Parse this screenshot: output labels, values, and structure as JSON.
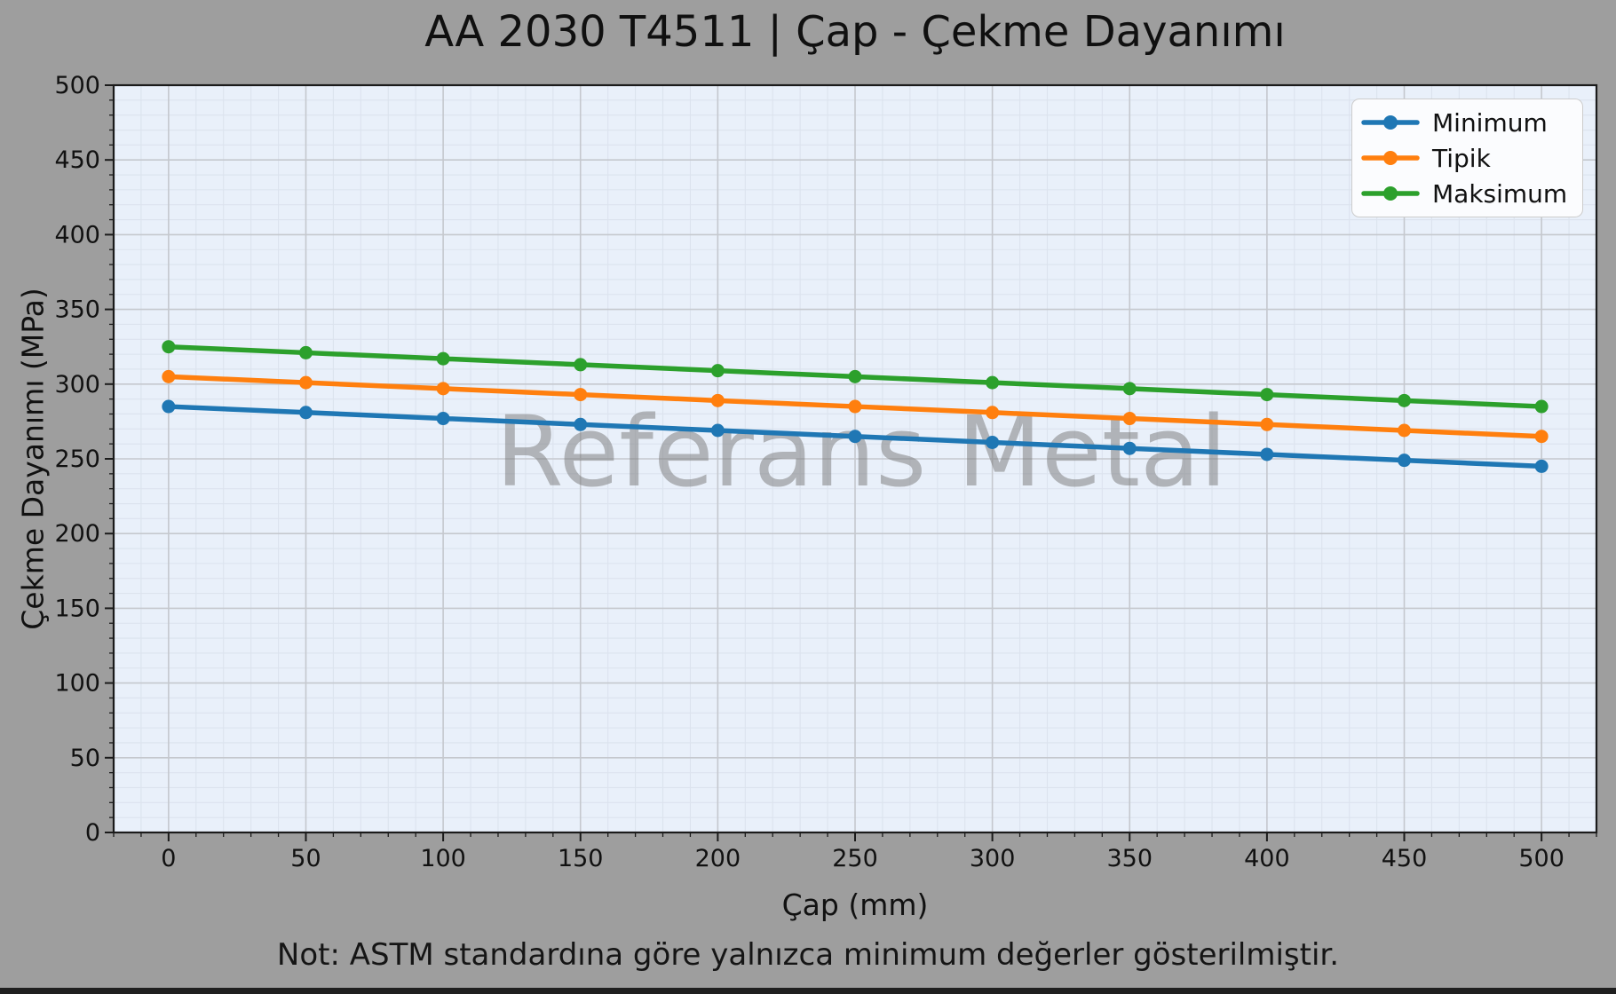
{
  "title": "AA 2030 T4511 | Çap - Çekme Dayanımı",
  "watermark": "Referans Metal",
  "note": "Not: ASTM standardına göre yalnızca minimum değerler gösterilmiştir.",
  "colors": {
    "figure_bg": "#9e9e9e",
    "plot_bg": "#e9f0fa",
    "grid_major": "#c5c8ce",
    "grid_minor": "#dce3ee",
    "spine": "#1b1b1b",
    "tick_text": "#111111",
    "watermark": "#787878",
    "legend_bg": "#fbfcfe",
    "legend_border": "#cccccc",
    "bottom_edge": "#1f1f1f"
  },
  "chart_data": {
    "type": "line",
    "title": "AA 2030 T4511 | Çap - Çekme Dayanımı",
    "x": [
      0,
      50,
      100,
      150,
      200,
      250,
      300,
      350,
      400,
      450,
      500
    ],
    "series": [
      {
        "name": "Minimum",
        "color": "#1f77b4",
        "values": [
          285,
          281,
          277,
          273,
          269,
          265,
          261,
          257,
          253,
          249,
          245
        ]
      },
      {
        "name": "Tipik",
        "color": "#ff7f0e",
        "values": [
          305,
          301,
          297,
          293,
          289,
          285,
          281,
          277,
          273,
          269,
          265
        ]
      },
      {
        "name": "Maksimum",
        "color": "#2ca02c",
        "values": [
          325,
          321,
          317,
          313,
          309,
          305,
          301,
          297,
          293,
          289,
          285
        ]
      }
    ],
    "xlabel": "Çap (mm)",
    "ylabel": "Çekme Dayanımı (MPa)",
    "xlim": [
      -20,
      520
    ],
    "ylim": [
      0,
      500
    ],
    "xticks": [
      0,
      50,
      100,
      150,
      200,
      250,
      300,
      350,
      400,
      450,
      500
    ],
    "yticks": [
      0,
      50,
      100,
      150,
      200,
      250,
      300,
      350,
      400,
      450,
      500
    ],
    "minor_step": 10,
    "grid": true,
    "legend_position": "top-right"
  }
}
